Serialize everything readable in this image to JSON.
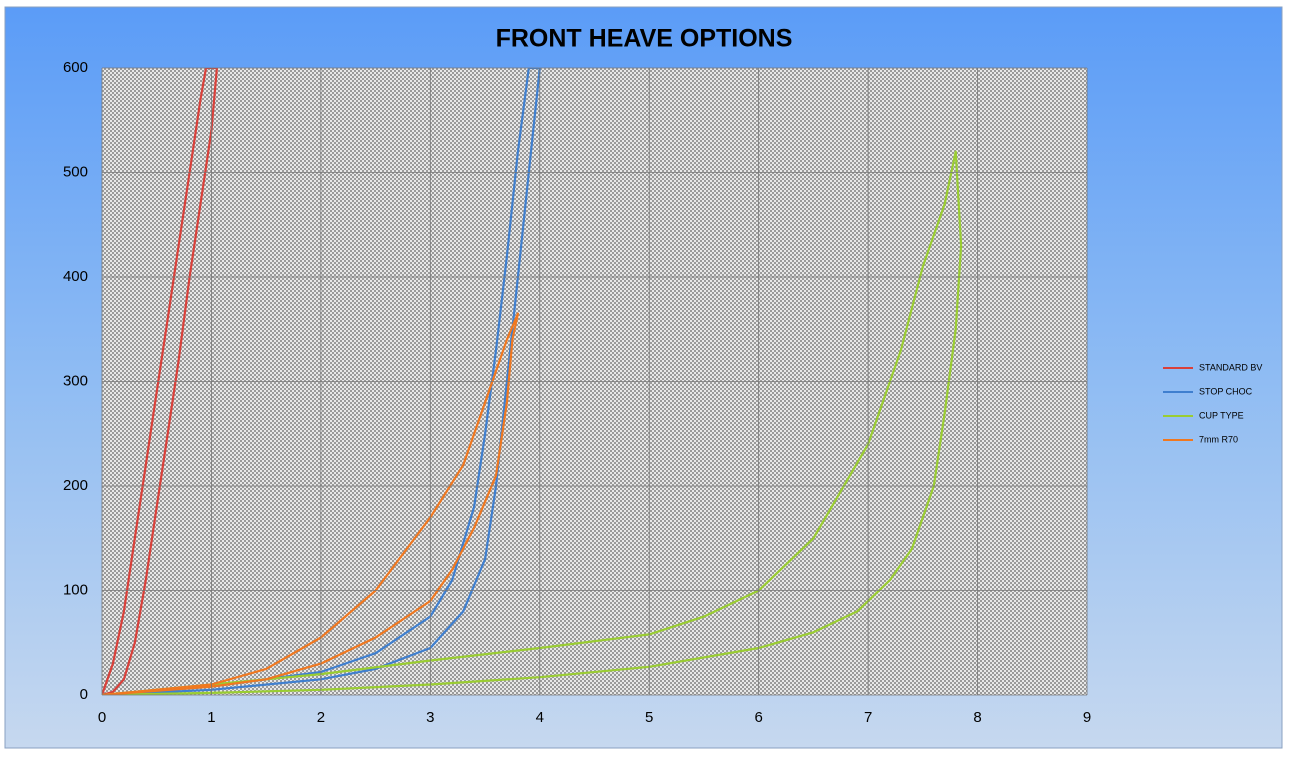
{
  "chart_data": {
    "type": "line",
    "title": "FRONT HEAVE OPTIONS",
    "xlim": [
      0,
      9
    ],
    "xticks": [
      0,
      1,
      2,
      3,
      4,
      5,
      6,
      7,
      8,
      9
    ],
    "ylim": [
      0,
      600
    ],
    "yticks": [
      0,
      100,
      200,
      300,
      400,
      500,
      600
    ],
    "grid": true,
    "legend": "right",
    "series": [
      {
        "name": "STANDARD BV",
        "color": "#d9403a",
        "x": [
          0,
          0.1,
          0.2,
          0.3,
          0.4,
          0.5,
          0.6,
          0.7,
          0.8,
          0.9,
          0.95,
          1.05,
          1.0,
          0.9,
          0.8,
          0.7,
          0.6,
          0.5,
          0.4,
          0.3,
          0.2,
          0.1,
          0
        ],
        "values": [
          0,
          30,
          80,
          150,
          220,
          290,
          360,
          430,
          500,
          570,
          600,
          600,
          540,
          470,
          400,
          320,
          250,
          180,
          110,
          50,
          15,
          3,
          0
        ]
      },
      {
        "name": "STOP CHOC",
        "color": "#3f7fcf",
        "x": [
          0,
          1,
          2,
          2.5,
          3,
          3.3,
          3.5,
          3.6,
          3.7,
          3.8,
          3.9,
          4.0,
          3.9,
          3.8,
          3.7,
          3.6,
          3.5,
          3.4,
          3.2,
          3,
          2.5,
          2,
          1,
          0
        ],
        "values": [
          0,
          5,
          15,
          25,
          45,
          80,
          130,
          200,
          300,
          400,
          500,
          600,
          600,
          520,
          420,
          330,
          250,
          180,
          110,
          75,
          40,
          22,
          8,
          0
        ]
      },
      {
        "name": "CUP TYPE",
        "color": "#9acd32",
        "x": [
          0,
          1,
          2,
          3,
          4,
          5,
          5.5,
          6,
          6.5,
          7,
          7.3,
          7.5,
          7.7,
          7.8,
          7.85,
          7.8,
          7.7,
          7.6,
          7.4,
          7.2,
          6.9,
          6.5,
          6,
          5,
          4,
          3,
          2,
          1,
          0
        ],
        "values": [
          0,
          10,
          20,
          33,
          45,
          58,
          75,
          100,
          150,
          240,
          330,
          410,
          470,
          520,
          430,
          350,
          270,
          200,
          140,
          110,
          80,
          60,
          45,
          27,
          17,
          10,
          5,
          2,
          0
        ]
      },
      {
        "name": "7mm R70",
        "color": "#f07820",
        "x": [
          0,
          1,
          1.5,
          2,
          2.5,
          3,
          3.3,
          3.5,
          3.7,
          3.8,
          3.75,
          3.7,
          3.6,
          3.4,
          3.2,
          3,
          2.5,
          2,
          1.5,
          1,
          0
        ],
        "values": [
          0,
          10,
          25,
          55,
          100,
          170,
          220,
          280,
          340,
          365,
          340,
          280,
          210,
          160,
          120,
          90,
          55,
          30,
          15,
          8,
          0
        ]
      }
    ]
  }
}
